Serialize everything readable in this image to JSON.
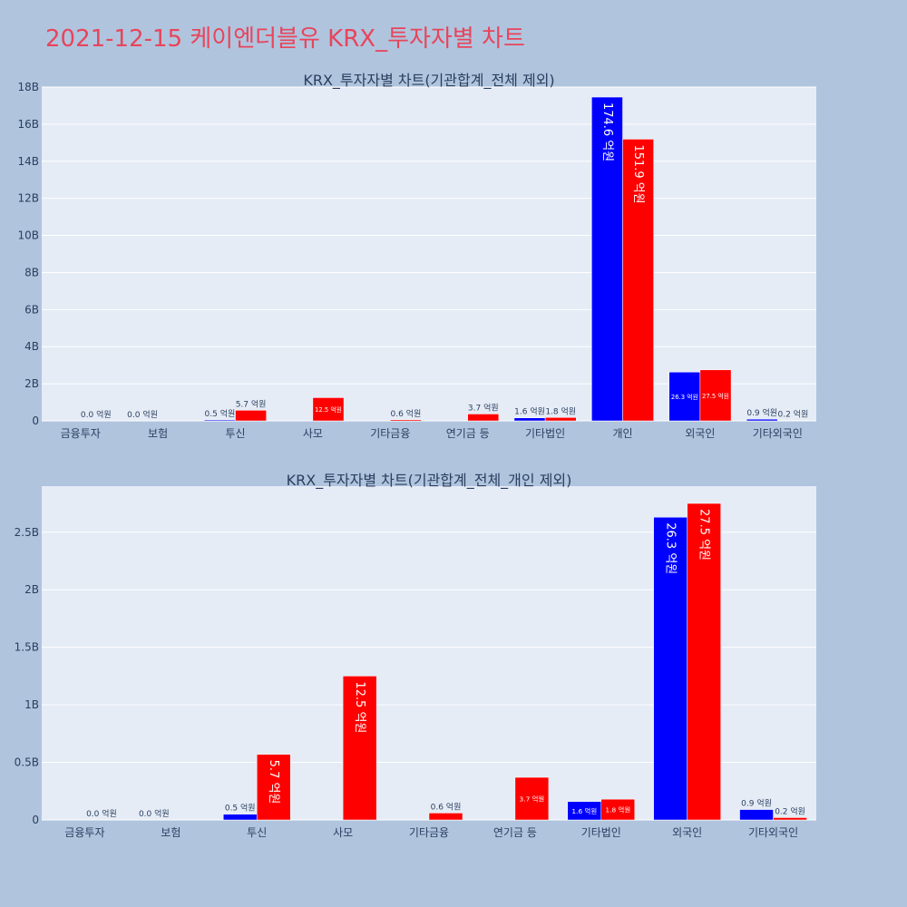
{
  "page_title": "2021-12-15 케이엔더블유 KRX_투자자별 차트",
  "colors": {
    "buy": "#0000ff",
    "sell": "#ff0000",
    "plot_bg": "#e5ecf6",
    "page_bg": "#b0c4de",
    "title": "#e8455b"
  },
  "chart_data": [
    {
      "type": "bar",
      "title": "KRX_투자자별 차트(기관합계_전체 제외)",
      "categories": [
        "금융투자",
        "보험",
        "투신",
        "사모",
        "기타금융",
        "연기금 등",
        "기타법인",
        "개인",
        "외국인",
        "기타외국인"
      ],
      "series": [
        {
          "color": "#0000ff",
          "values": [
            0.0,
            0.0,
            0.05,
            0.0,
            0.0,
            0.0,
            0.16,
            17.46,
            2.63,
            0.09
          ]
        },
        {
          "color": "#ff0000",
          "values": [
            0.0,
            0.0,
            0.57,
            1.25,
            0.06,
            0.37,
            0.18,
            15.19,
            2.75,
            0.02
          ]
        }
      ],
      "labels": [
        [
          "",
          "0.0 억원",
          "0.5 억원",
          "",
          "",
          "",
          "1.6 억원",
          "174.6 억원",
          "26.3 억원",
          "0.9 억원"
        ],
        [
          "0.0 억원",
          "",
          "5.7 억원",
          "12.5 억원",
          "0.6 억원",
          "3.7 억원",
          "1.8 억원",
          "151.9 억원",
          "27.5 억원",
          "0.2 억원"
        ]
      ],
      "ylim": [
        0,
        18
      ],
      "yticks": [
        0,
        2,
        4,
        6,
        8,
        10,
        12,
        14,
        16,
        18
      ],
      "ytick_labels": [
        "0",
        "2B",
        "4B",
        "6B",
        "8B",
        "10B",
        "12B",
        "14B",
        "16B",
        "18B"
      ],
      "grid": true,
      "legend": "none"
    },
    {
      "type": "bar",
      "title": "KRX_투자자별 차트(기관합계_전체_개인 제외)",
      "categories": [
        "금융투자",
        "보험",
        "투신",
        "사모",
        "기타금융",
        "연기금 등",
        "기타법인",
        "외국인",
        "기타외국인"
      ],
      "series": [
        {
          "color": "#0000ff",
          "values": [
            0.0,
            0.0,
            0.05,
            0.0,
            0.0,
            0.0,
            0.16,
            2.63,
            0.09
          ]
        },
        {
          "color": "#ff0000",
          "values": [
            0.0,
            0.0,
            0.57,
            1.25,
            0.06,
            0.37,
            0.18,
            2.75,
            0.02
          ]
        }
      ],
      "labels": [
        [
          "",
          "0.0 억원",
          "0.5 억원",
          "",
          "",
          "",
          "1.6 억원",
          "26.3 억원",
          "0.9 억원"
        ],
        [
          "0.0 억원",
          "",
          "5.7 억원",
          "12.5 억원",
          "0.6 억원",
          "3.7 억원",
          "1.8 억원",
          "27.5 억원",
          "0.2 억원"
        ]
      ],
      "ylim": [
        0,
        2.9
      ],
      "yticks": [
        0,
        0.5,
        1,
        1.5,
        2,
        2.5
      ],
      "ytick_labels": [
        "0",
        "0.5B",
        "1B",
        "1.5B",
        "2B",
        "2.5B"
      ],
      "grid": true,
      "legend": "none"
    }
  ]
}
